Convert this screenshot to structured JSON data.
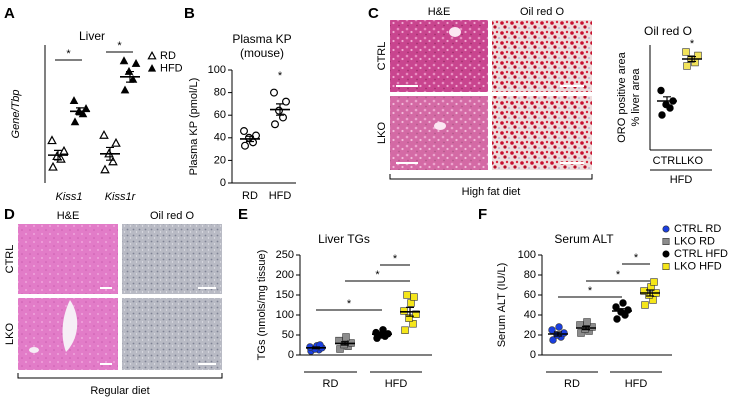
{
  "chart_data": [
    {
      "panel": "A",
      "type": "scatter",
      "title": "Liver",
      "ylabel": "Gene/Tbp",
      "ylim": [
        0,
        5.2
      ],
      "categories": [
        "Kiss1",
        "Kiss1r"
      ],
      "italic_categories": true,
      "legend": true,
      "series": [
        {
          "name": "RD",
          "marker": "open-triangle",
          "color": "#000000",
          "values": [
            [
              0.6,
              0.9,
              1.0,
              1.2,
              1.6
            ],
            [
              0.5,
              0.8,
              1.1,
              1.5,
              1.8
            ]
          ],
          "mean": [
            1.05,
            1.1
          ],
          "sem": [
            0.18,
            0.24
          ]
        },
        {
          "name": "HFD",
          "marker": "triangle",
          "color": "#000000",
          "values": [
            [
              2.3,
              2.6,
              2.7,
              2.8,
              3.1
            ],
            [
              3.5,
              3.9,
              4.2,
              4.5,
              4.6
            ]
          ],
          "mean": [
            2.7,
            4.0
          ],
          "sem": [
            0.13,
            0.2
          ]
        }
      ],
      "significance": [
        "*",
        "*"
      ]
    },
    {
      "panel": "B",
      "type": "scatter",
      "title": "Plasma KP",
      "subtitle": "(mouse)",
      "ylabel": "Plasma KP (pmol/L)",
      "ylim": [
        0,
        100
      ],
      "yticks": [
        0,
        20,
        40,
        60,
        80,
        100
      ],
      "categories": [
        "RD",
        "HFD"
      ],
      "series": [
        {
          "marker": "open-circle",
          "color": "#000000",
          "values": [
            [
              33,
              36,
              40,
              42,
              46
            ],
            [
              52,
              58,
              64,
              72,
              80
            ]
          ],
          "mean": [
            39,
            65
          ],
          "sem": [
            2.3,
            5
          ]
        }
      ],
      "significance": [
        "*"
      ]
    },
    {
      "panel": "C",
      "type": "scatter",
      "title": "Oil red O",
      "ylabel": [
        "ORO positive area",
        "% liver area"
      ],
      "ylim": [
        10,
        40
      ],
      "categories": [
        "CTRL",
        "LKO"
      ],
      "group_label": "HFD",
      "series": [
        {
          "marker": "circle",
          "color": "#000000",
          "values": [
            [
              20,
              22,
              23,
              24,
              27
            ],
            null
          ],
          "mean": [
            24,
            null
          ],
          "sem": [
            1.2,
            null
          ]
        },
        {
          "marker": "square",
          "color": "#f2e35a",
          "values": [
            null,
            [
              34,
              35,
              36,
              37,
              38
            ]
          ],
          "mean": [
            null,
            36
          ],
          "sem": [
            null,
            0.7
          ]
        }
      ],
      "significance": [
        "*"
      ]
    },
    {
      "panel": "E",
      "type": "scatter",
      "title": "Liver TGs",
      "ylabel": "TGs (nmols/mg tissue)",
      "ylim": [
        0,
        250
      ],
      "yticks": [
        0,
        50,
        100,
        150,
        200,
        250
      ],
      "categories": [
        "RD",
        "HFD"
      ],
      "category_brackets": true,
      "series": [
        {
          "marker": "circle",
          "color": "#1a3fe0",
          "values": [
            [
              10,
              13,
              15,
              18,
              20,
              23,
              25
            ],
            null
          ],
          "mean": [
            18,
            null
          ],
          "sem": [
            2,
            null
          ]
        },
        {
          "marker": "square",
          "color": "#8c8c8c",
          "values": [
            [
              15,
              22,
              26,
              30,
              36,
              45
            ],
            null
          ],
          "mean": [
            29,
            null
          ],
          "sem": [
            4,
            null
          ]
        },
        {
          "marker": "circle",
          "color": "#000000",
          "values": [
            null,
            [
              42,
              47,
              50,
              53,
              56,
              63
            ]
          ],
          "mean": [
            null,
            52
          ],
          "sem": [
            null,
            3
          ]
        },
        {
          "marker": "square",
          "color": "#f5e61a",
          "values": [
            null,
            [
              62,
              78,
              92,
              102,
              110,
              130,
              145,
              150
            ]
          ],
          "mean": [
            null,
            108
          ],
          "sem": [
            null,
            11
          ]
        }
      ],
      "significance": [
        "*",
        "*",
        "*"
      ]
    },
    {
      "panel": "F",
      "type": "scatter",
      "title": "Serum ALT",
      "ylabel": "Serum ALT (IU/L)",
      "ylim": [
        0,
        100
      ],
      "yticks": [
        0,
        20,
        40,
        60,
        80,
        100
      ],
      "categories": [
        "RD",
        "HFD"
      ],
      "category_brackets": true,
      "legend": true,
      "series": [
        {
          "name": "CTRL RD",
          "marker": "circle",
          "color": "#1a3fe0",
          "values": [
            [
              15,
              18,
              20,
              22,
              25,
              28
            ],
            null
          ],
          "mean": [
            21,
            null
          ],
          "sem": [
            2,
            null
          ]
        },
        {
          "name": "LKO RD",
          "marker": "square",
          "color": "#8c8c8c",
          "values": [
            [
              22,
              24,
              26,
              28,
              30,
              33
            ],
            null
          ],
          "mean": [
            27,
            null
          ],
          "sem": [
            1.6,
            null
          ]
        },
        {
          "name": "CTRL HFD",
          "marker": "circle",
          "color": "#000000",
          "values": [
            null,
            [
              36,
              40,
              43,
              45,
              48,
              52
            ]
          ],
          "mean": [
            null,
            44
          ],
          "sem": [
            null,
            2.3
          ]
        },
        {
          "name": "LKO HFD",
          "marker": "square",
          "color": "#f5e61a",
          "values": [
            null,
            [
              50,
              55,
              60,
              62,
              64,
              68,
              73
            ]
          ],
          "mean": [
            null,
            62
          ],
          "sem": [
            null,
            3
          ]
        }
      ],
      "significance": [
        "*",
        "*",
        "*"
      ]
    }
  ],
  "images": [
    {
      "panel": "C",
      "columns": [
        "H&E",
        "Oil red O"
      ],
      "rows": [
        "CTRL",
        "LKO"
      ],
      "caption": "High fat diet"
    },
    {
      "panel": "D",
      "columns": [
        "H&E",
        "Oil red O"
      ],
      "rows": [
        "CTRL",
        "LKO"
      ],
      "caption": "Regular diet"
    }
  ]
}
